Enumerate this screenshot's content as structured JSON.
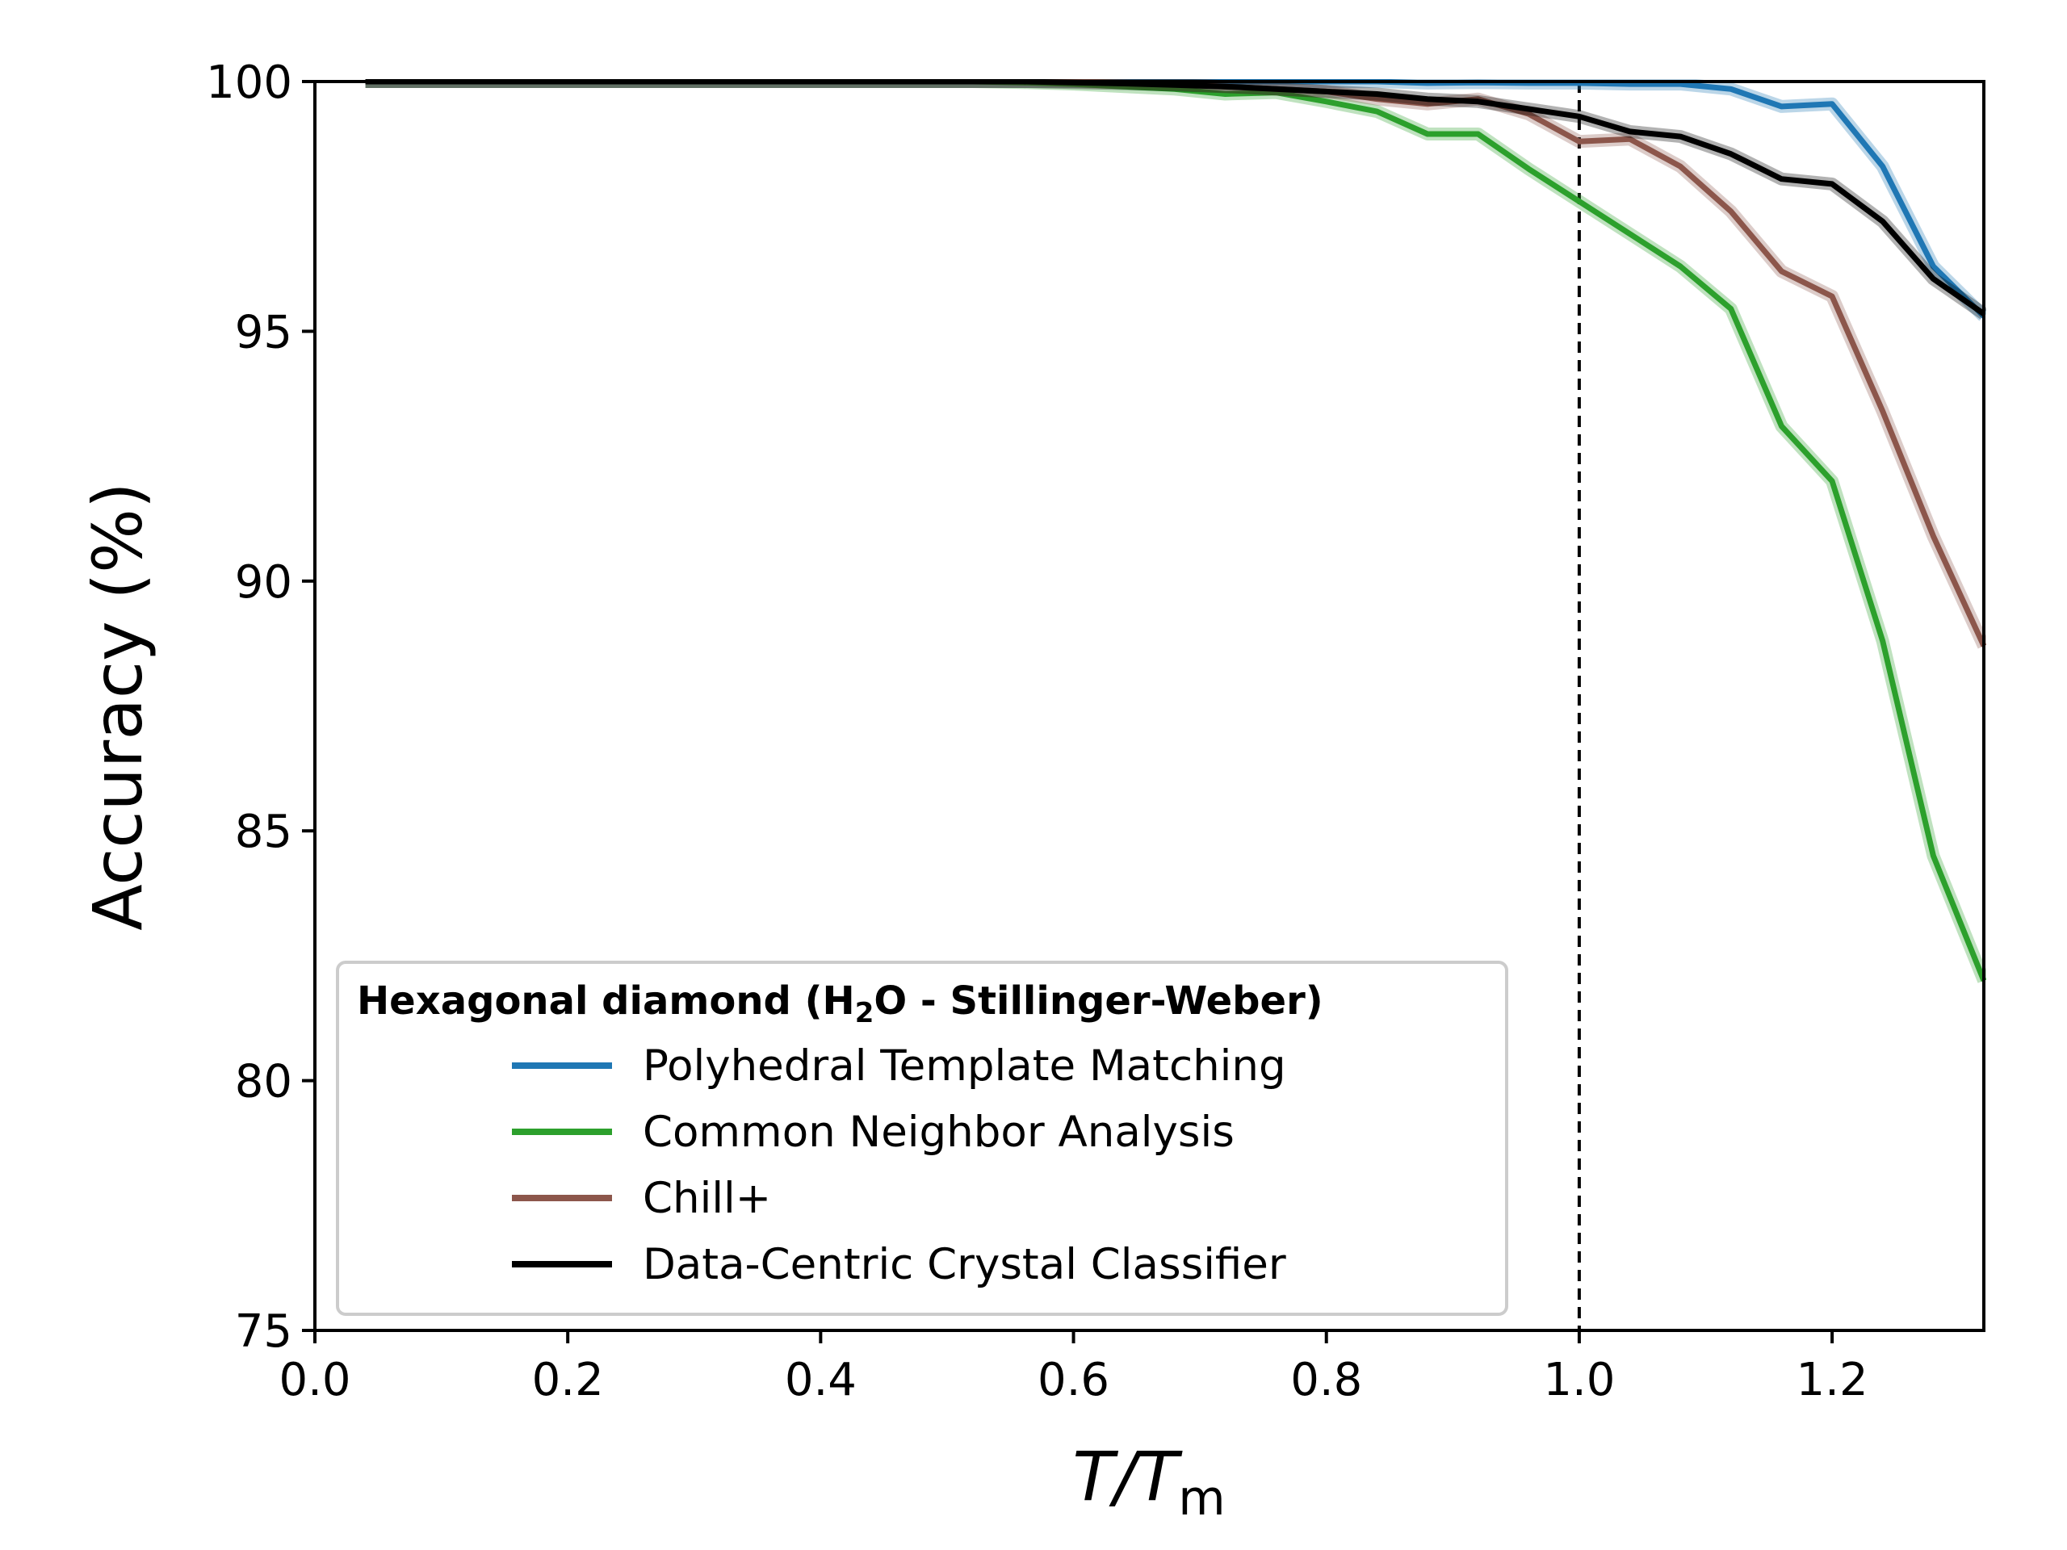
{
  "chart_data": {
    "type": "line",
    "title": "",
    "xlabel_main": "T/T",
    "xlabel_sub": "m",
    "ylabel": "Accuracy (%)",
    "xlim": [
      0.0,
      1.32
    ],
    "ylim": [
      75,
      100
    ],
    "xticks": [
      0.0,
      0.2,
      0.4,
      0.6,
      0.8,
      1.0,
      1.2
    ],
    "xtick_labels": [
      "0.0",
      "0.2",
      "0.4",
      "0.6",
      "0.8",
      "1.0",
      "1.2"
    ],
    "yticks": [
      75,
      80,
      85,
      90,
      95,
      100
    ],
    "ytick_labels": [
      "75",
      "80",
      "85",
      "90",
      "95",
      "100"
    ],
    "grid": false,
    "vline": {
      "x": 1.0,
      "style": "dashed"
    },
    "legend": {
      "placement": "lower-left",
      "title_pre": "Hexagonal diamond (H",
      "title_sub": "2",
      "title_post": "O - Stillinger-Weber)"
    },
    "x": [
      0.04,
      0.08,
      0.12,
      0.16,
      0.2,
      0.24,
      0.28,
      0.32,
      0.36,
      0.4,
      0.44,
      0.48,
      0.52,
      0.56,
      0.6,
      0.64,
      0.68,
      0.72,
      0.76,
      0.8,
      0.84,
      0.88,
      0.92,
      0.96,
      1.0,
      1.04,
      1.08,
      1.12,
      1.16,
      1.2,
      1.24,
      1.28,
      1.32
    ],
    "series": [
      {
        "name": "Polyhedral Template Matching",
        "color": "#1f77b4",
        "values": [
          100,
          100,
          100,
          100,
          100,
          100,
          100,
          100,
          100,
          100,
          100,
          100,
          100,
          100,
          100,
          100,
          100,
          100,
          100,
          100,
          100,
          99.97,
          99.98,
          99.97,
          99.97,
          99.95,
          99.95,
          99.85,
          99.5,
          99.55,
          98.3,
          96.3,
          95.3
        ]
      },
      {
        "name": "Common Neighbor Analysis",
        "color": "#2ca02c",
        "values": [
          100,
          100,
          100,
          100,
          100,
          100,
          100,
          100,
          100,
          100,
          100,
          100,
          100,
          99.98,
          99.95,
          99.9,
          99.85,
          99.75,
          99.78,
          99.6,
          99.4,
          98.95,
          98.95,
          98.25,
          97.6,
          96.95,
          96.3,
          95.45,
          93.1,
          92.0,
          88.8,
          84.5,
          82.0
        ]
      },
      {
        "name": "Chill+",
        "color": "#8c564b",
        "values": [
          100,
          100,
          100,
          100,
          100,
          100,
          100,
          100,
          100,
          100,
          100,
          100,
          100,
          100,
          100,
          99.98,
          99.95,
          99.9,
          99.85,
          99.8,
          99.65,
          99.55,
          99.65,
          99.35,
          98.8,
          98.85,
          98.3,
          97.4,
          96.2,
          95.7,
          93.4,
          90.9,
          88.7
        ]
      },
      {
        "name": "Data-Centric Crystal Classifier",
        "color": "#000000",
        "values": [
          100,
          100,
          100,
          100,
          100,
          100,
          100,
          100,
          100,
          100,
          100,
          100,
          100,
          100,
          99.98,
          99.96,
          99.93,
          99.9,
          99.85,
          99.8,
          99.75,
          99.65,
          99.6,
          99.45,
          99.3,
          99.0,
          98.9,
          98.55,
          98.05,
          97.95,
          97.2,
          96.05,
          95.35
        ]
      }
    ]
  }
}
